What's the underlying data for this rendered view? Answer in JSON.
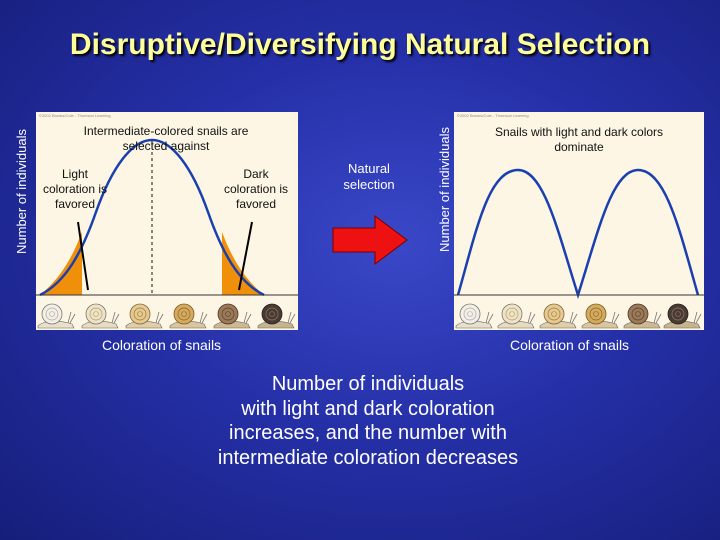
{
  "title": "Disruptive/Diversifying Natural Selection",
  "left_panel": {
    "copyright": "©2002 Brooks/Cole - Thomson Learning",
    "ylabel": "Number of individuals",
    "xlabel": "Coloration of snails",
    "top_text": "Intermediate-colored snails are selected against",
    "light_text": "Light coloration is favored",
    "dark_text": "Dark coloration is favored"
  },
  "arrow": {
    "label": "Natural selection",
    "color": "#ee1111"
  },
  "right_panel": {
    "copyright": "©2002 Brooks/Cole - Thomson Learning",
    "ylabel": "Number of individuals",
    "xlabel": "Coloration of snails",
    "top_text": "Snails with light and dark colors dominate"
  },
  "caption": [
    "Number of individuals",
    "with light and dark coloration",
    "increases, and the number with",
    "intermediate coloration decreases"
  ],
  "colors": {
    "title": "#ffff99",
    "curve": "#1a3fb0",
    "favored_fill": "#f0900a",
    "panel": "#fdf6e4"
  },
  "snail_icons": [
    "snail-light-icon",
    "snail-light-icon",
    "snail-tan-icon",
    "snail-tan-icon",
    "snail-brown-icon",
    "snail-dark-icon"
  ]
}
